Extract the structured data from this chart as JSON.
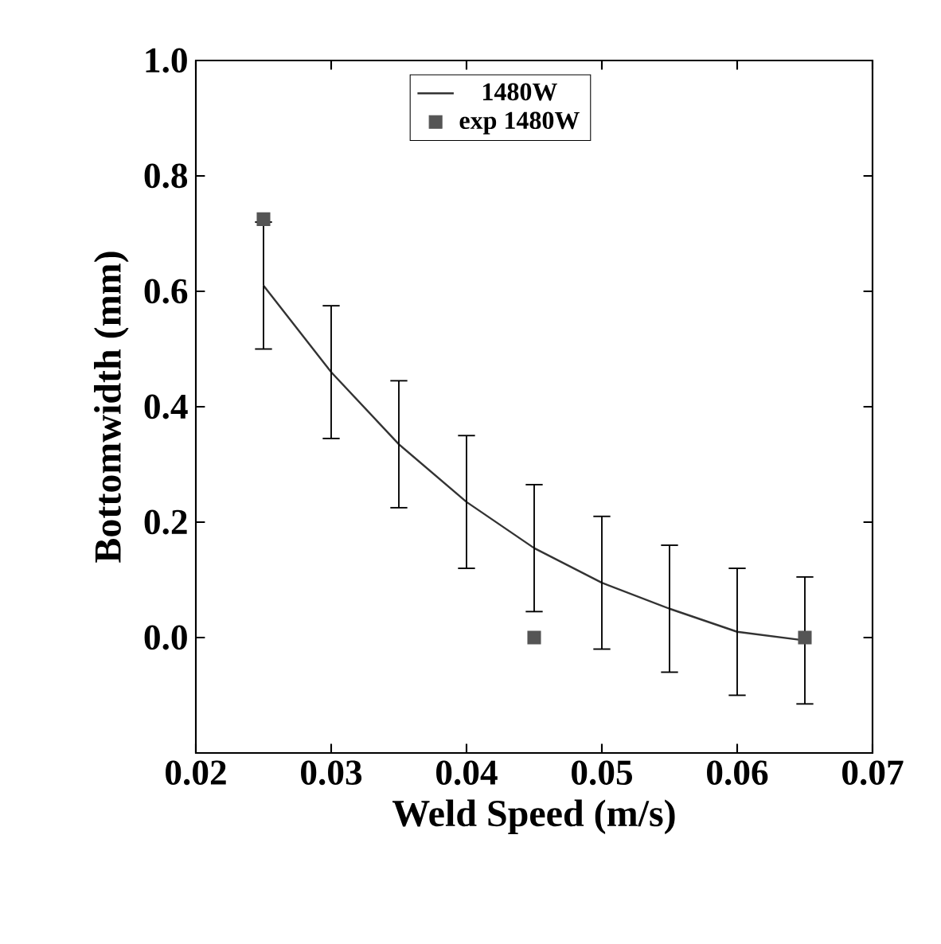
{
  "chart_data": {
    "type": "line",
    "xlabel": "Weld Speed (m/s)",
    "ylabel": "Bottomwidth (mm)",
    "xlim": [
      0.02,
      0.07
    ],
    "ylim": [
      -0.2,
      1.0
    ],
    "xticks": [
      0.02,
      0.03,
      0.04,
      0.05,
      0.06,
      0.07
    ],
    "yticks": [
      {
        "value": 0,
        "label": "0.0"
      },
      {
        "value": 0.2,
        "label": "0.2"
      },
      {
        "value": 0.4,
        "label": "0.4"
      },
      {
        "value": 0.6,
        "label": "0.6"
      },
      {
        "value": 0.8,
        "label": "0.8"
      },
      {
        "value": 1,
        "label": "1.0"
      }
    ],
    "grid": false,
    "legend": "top",
    "series": [
      {
        "name": "1480W",
        "color": "#333333",
        "line_style": "solid",
        "x": [
          0.025,
          0.03,
          0.035,
          0.04,
          0.045,
          0.05,
          0.055,
          0.06,
          0.065
        ],
        "values": [
          0.61,
          0.46,
          0.335,
          0.235,
          0.155,
          0.095,
          0.05,
          0.01,
          -0.005
        ],
        "errors": [
          0.11,
          0.115,
          0.11,
          0.115,
          0.11,
          0.115,
          0.11,
          0.11,
          0.11
        ]
      },
      {
        "name": "exp 1480W",
        "type": "scatter",
        "marker": "square",
        "color": "#555555",
        "x": [
          0.025,
          0.045,
          0.065
        ],
        "values": [
          0.725,
          0.0,
          0.0
        ]
      }
    ]
  }
}
